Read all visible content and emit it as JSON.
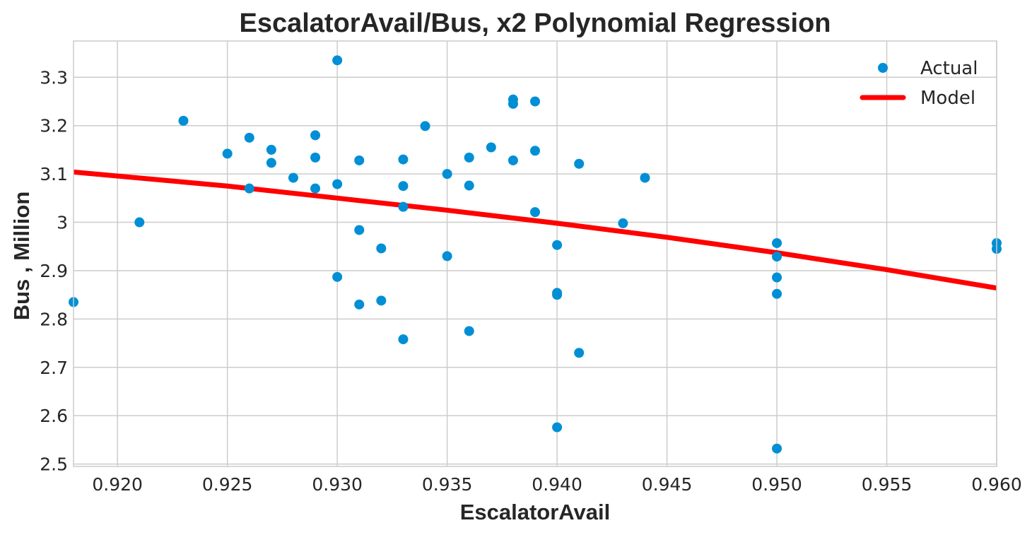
{
  "chart_data": {
    "type": "scatter",
    "title": "EscalatorAvail/Bus, x2 Polynomial Regression",
    "xlabel": "EscalatorAvail",
    "ylabel": "Bus , Million",
    "xlim": [
      0.918,
      0.96
    ],
    "ylim": [
      2.495,
      3.375
    ],
    "x_ticks": [
      0.92,
      0.925,
      0.93,
      0.935,
      0.94,
      0.945,
      0.95,
      0.955,
      0.96
    ],
    "x_tick_labels": [
      "0.920",
      "0.925",
      "0.930",
      "0.935",
      "0.940",
      "0.945",
      "0.950",
      "0.955",
      "0.960"
    ],
    "y_ticks": [
      2.5,
      2.6,
      2.7,
      2.8,
      2.9,
      3.0,
      3.1,
      3.2,
      3.3
    ],
    "y_tick_labels": [
      "2.5",
      "2.6",
      "2.7",
      "2.8",
      "2.9",
      "3",
      "3.1",
      "3.2",
      "3.3"
    ],
    "grid": true,
    "legend_position": "top-right",
    "series": [
      {
        "name": "Actual",
        "kind": "scatter",
        "color": "#008fd5",
        "points": [
          [
            0.918,
            2.835
          ],
          [
            0.921,
            3.0
          ],
          [
            0.923,
            3.21
          ],
          [
            0.925,
            3.142
          ],
          [
            0.926,
            3.175
          ],
          [
            0.926,
            3.07
          ],
          [
            0.927,
            3.15
          ],
          [
            0.927,
            3.123
          ],
          [
            0.928,
            3.092
          ],
          [
            0.929,
            3.18
          ],
          [
            0.929,
            3.134
          ],
          [
            0.929,
            3.07
          ],
          [
            0.93,
            3.335
          ],
          [
            0.93,
            3.079
          ],
          [
            0.93,
            2.887
          ],
          [
            0.931,
            3.128
          ],
          [
            0.931,
            2.984
          ],
          [
            0.931,
            2.83
          ],
          [
            0.932,
            2.946
          ],
          [
            0.932,
            2.838
          ],
          [
            0.933,
            3.13
          ],
          [
            0.933,
            3.075
          ],
          [
            0.933,
            3.032
          ],
          [
            0.933,
            2.758
          ],
          [
            0.934,
            3.199
          ],
          [
            0.935,
            3.1
          ],
          [
            0.935,
            2.93
          ],
          [
            0.936,
            3.134
          ],
          [
            0.936,
            3.076
          ],
          [
            0.936,
            2.775
          ],
          [
            0.937,
            3.155
          ],
          [
            0.938,
            3.254
          ],
          [
            0.938,
            3.245
          ],
          [
            0.938,
            3.128
          ],
          [
            0.939,
            3.25
          ],
          [
            0.939,
            3.148
          ],
          [
            0.939,
            3.021
          ],
          [
            0.94,
            2.953
          ],
          [
            0.94,
            2.854
          ],
          [
            0.94,
            2.85
          ],
          [
            0.94,
            2.576
          ],
          [
            0.941,
            3.121
          ],
          [
            0.941,
            2.73
          ],
          [
            0.943,
            2.998
          ],
          [
            0.944,
            3.092
          ],
          [
            0.95,
            2.957
          ],
          [
            0.95,
            2.929
          ],
          [
            0.95,
            2.886
          ],
          [
            0.95,
            2.852
          ],
          [
            0.95,
            2.532
          ],
          [
            0.96,
            2.957
          ],
          [
            0.96,
            2.945
          ]
        ]
      },
      {
        "name": "Model",
        "kind": "line",
        "color": "#ff0000",
        "points": [
          [
            0.918,
            3.104
          ],
          [
            0.925,
            3.075
          ],
          [
            0.93,
            3.05
          ],
          [
            0.935,
            3.025
          ],
          [
            0.94,
            2.998
          ],
          [
            0.945,
            2.969
          ],
          [
            0.95,
            2.937
          ],
          [
            0.955,
            2.902
          ],
          [
            0.96,
            2.864
          ]
        ]
      }
    ]
  }
}
